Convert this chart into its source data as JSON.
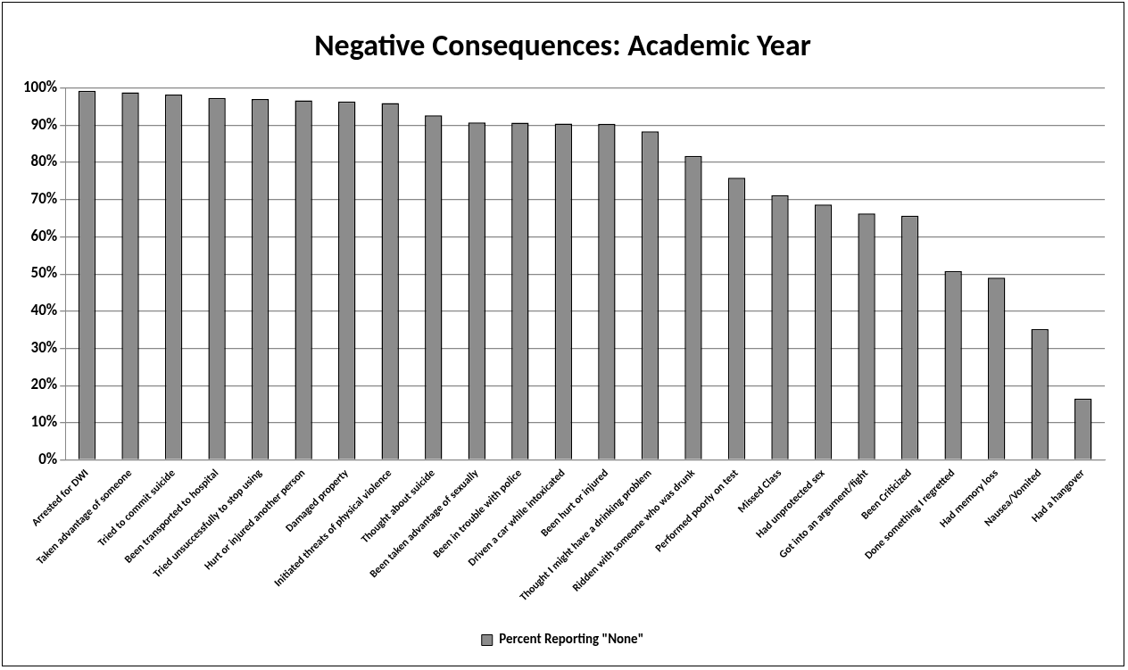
{
  "chart_data": {
    "type": "bar",
    "title": "Negative Consequences: Academic Year",
    "categories": [
      "Arrested for DWI",
      "Taken advantage of someone",
      "Tried to commit suicide",
      "Been transported to hospital",
      "Tried unsuccessfully to stop using",
      "Hurt or injured another person",
      "Damaged property",
      "Initiated threats of physical violence",
      "Thought about suicide",
      "Been taken advantage of sexually",
      "Been in trouble with police",
      "Driven a car while intoxicated",
      "Been hurt or injured",
      "Thought I might have a drinking problem",
      "Ridden with someone who was drunk",
      "Performed poorly on test",
      "Missed Class",
      "Had unprotected sex",
      "Got into an argument/fight",
      "Been Criticized",
      "Done something I regretted",
      "Had memory loss",
      "Nausea/Vomited",
      "Had a hangover"
    ],
    "series": [
      {
        "name": "Percent Reporting \"None\"",
        "color": "#8c8c8c",
        "values": [
          99.3,
          98.9,
          98.3,
          97.4,
          97.1,
          96.7,
          96.4,
          96.0,
          92.7,
          90.8,
          90.7,
          90.5,
          90.4,
          88.4,
          81.8,
          75.9,
          71.2,
          68.7,
          66.3,
          65.7,
          50.8,
          49.0,
          35.2,
          16.5
        ]
      }
    ],
    "ylim": [
      0,
      100
    ],
    "yticks": [
      {
        "value": 0,
        "label": "0%"
      },
      {
        "value": 10,
        "label": "10%"
      },
      {
        "value": 20,
        "label": "20%"
      },
      {
        "value": 30,
        "label": "30%"
      },
      {
        "value": 40,
        "label": "40%"
      },
      {
        "value": 50,
        "label": "50%"
      },
      {
        "value": 60,
        "label": "60%"
      },
      {
        "value": 70,
        "label": "70%"
      },
      {
        "value": 80,
        "label": "80%"
      },
      {
        "value": 90,
        "label": "90%"
      },
      {
        "value": 100,
        "label": "100%"
      }
    ],
    "grid": "y",
    "legend": "bottom"
  }
}
